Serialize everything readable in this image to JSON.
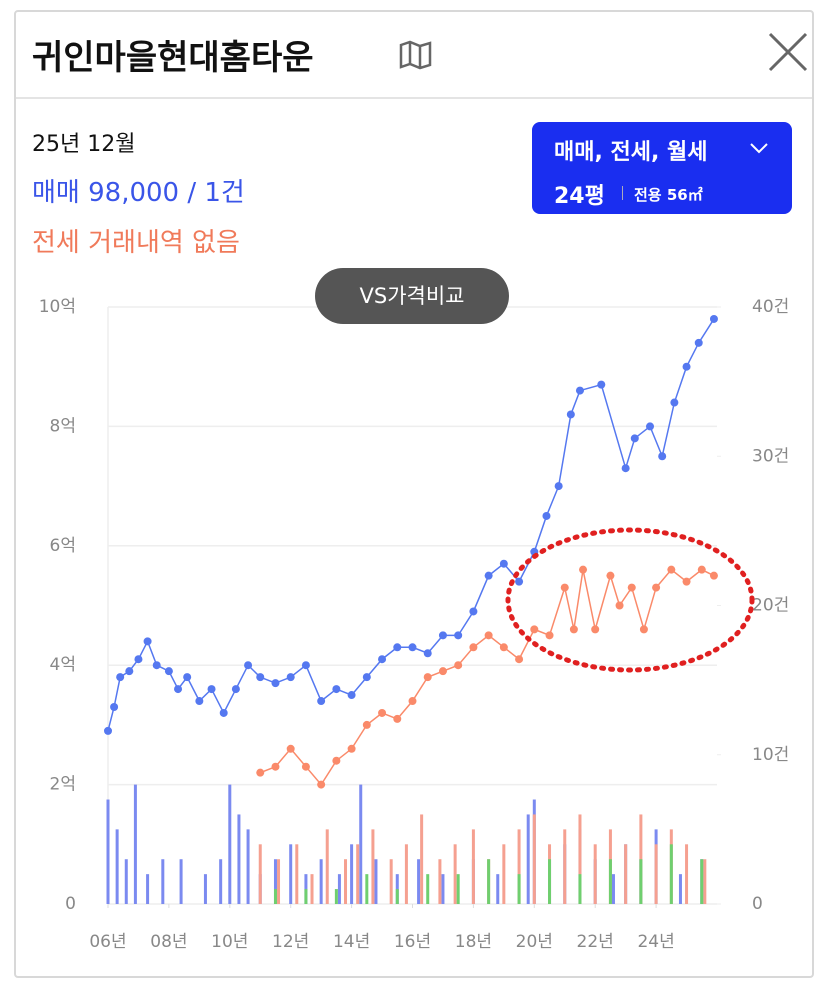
{
  "header": {
    "title": "귀인마을현대홈타운",
    "date": "25년 12월",
    "sale_summary": "매매 98,000 / 1건",
    "lease_summary": "전세 거래내역 없음",
    "filter_button": "매매, 전세, 월세",
    "size": "24평",
    "area": "전용 56㎡",
    "compare_button": "VS가격비교"
  },
  "chart_data": {
    "type": "line",
    "xlim": [
      2006,
      2026
    ],
    "xticks": [
      {
        "value": 2006,
        "label": "06년"
      },
      {
        "value": 2008,
        "label": "08년"
      },
      {
        "value": 2010,
        "label": "10년"
      },
      {
        "value": 2012,
        "label": "12년"
      },
      {
        "value": 2014,
        "label": "14년"
      },
      {
        "value": 2016,
        "label": "16년"
      },
      {
        "value": 2018,
        "label": "18년"
      },
      {
        "value": 2020,
        "label": "20년"
      },
      {
        "value": 2022,
        "label": "22년"
      },
      {
        "value": 2024,
        "label": "24년"
      }
    ],
    "ylim": [
      0,
      10
    ],
    "yticks": [
      0,
      {
        "value": 2,
        "label": "2억"
      },
      {
        "value": 4,
        "label": "4억"
      },
      {
        "value": 6,
        "label": "6억"
      },
      {
        "value": 8,
        "label": "8억"
      },
      {
        "value": 10,
        "label": "10억"
      }
    ],
    "y2lim": [
      0,
      40
    ],
    "y2ticks": [
      0,
      {
        "value": 10,
        "label": "10건"
      },
      {
        "value": 20,
        "label": "20건"
      },
      {
        "value": 30,
        "label": "30건"
      },
      {
        "value": 40,
        "label": "40건"
      }
    ],
    "grid": true,
    "series": [
      {
        "type": "bar",
        "axis": "y2",
        "color": "#7b8af0",
        "x": [
          2006.0,
          2006.3,
          2006.6,
          2006.9,
          2007.3,
          2007.8,
          2008.4,
          2009.2,
          2009.7,
          2010.0,
          2010.3,
          2010.6,
          2011.0,
          2011.5,
          2012.0,
          2012.5,
          2013.0,
          2013.6,
          2014.0,
          2014.3,
          2014.8,
          2015.5,
          2016.2,
          2017.0,
          2018.0,
          2018.8,
          2019.8,
          2020.0,
          2020.5,
          2021.0,
          2021.5,
          2022.0,
          2022.6,
          2023.0,
          2023.5,
          2024.0,
          2024.8,
          2025.5
        ],
        "values": [
          7,
          5,
          3,
          8,
          2,
          3,
          3,
          2,
          3,
          8,
          6,
          5,
          2,
          3,
          4,
          2,
          3,
          2,
          4,
          8,
          3,
          2,
          3,
          2,
          3,
          2,
          6,
          7,
          3,
          4,
          5,
          3,
          2,
          4,
          3,
          5,
          2,
          3
        ]
      },
      {
        "type": "bar",
        "axis": "y2",
        "color": "#f5a090",
        "x": [
          2011.0,
          2011.6,
          2012.2,
          2012.7,
          2013.2,
          2013.8,
          2014.2,
          2014.7,
          2015.3,
          2015.8,
          2016.3,
          2016.9,
          2017.4,
          2018.0,
          2018.5,
          2019.0,
          2019.5,
          2020.0,
          2020.5,
          2021.0,
          2021.5,
          2022.0,
          2022.5,
          2023.0,
          2023.5,
          2024.0,
          2024.5,
          2025.0,
          2025.6
        ],
        "values": [
          4,
          3,
          4,
          2,
          5,
          3,
          4,
          5,
          3,
          4,
          6,
          3,
          4,
          5,
          3,
          4,
          5,
          6,
          4,
          5,
          6,
          4,
          5,
          4,
          6,
          4,
          5,
          4,
          3
        ]
      },
      {
        "type": "bar",
        "axis": "y2",
        "color": "#6fcf6f",
        "x": [
          2011.5,
          2012.5,
          2013.5,
          2014.5,
          2015.5,
          2016.5,
          2017.5,
          2018.5,
          2019.5,
          2020.5,
          2021.5,
          2022.5,
          2023.5,
          2024.5,
          2025.5
        ],
        "values": [
          1,
          1,
          1,
          2,
          1,
          2,
          2,
          3,
          2,
          3,
          2,
          3,
          3,
          4,
          3
        ]
      },
      {
        "type": "line",
        "color": "#fa8a6a",
        "x": [
          2011.0,
          2011.5,
          2012.0,
          2012.5,
          2013.0,
          2013.5,
          2014.0,
          2014.5,
          2015.0,
          2015.5,
          2016.0,
          2016.5,
          2017.0,
          2017.5,
          2018.0,
          2018.5,
          2019.0,
          2019.5,
          2020.0,
          2020.5,
          2021.0,
          2021.3,
          2021.6,
          2022.0,
          2022.5,
          2022.8,
          2023.2,
          2023.6,
          2024.0,
          2024.5,
          2025.0,
          2025.5,
          2025.9
        ],
        "values": [
          2.2,
          2.3,
          2.6,
          2.3,
          2.0,
          2.4,
          2.6,
          3.0,
          3.2,
          3.1,
          3.4,
          3.8,
          3.9,
          4.0,
          4.3,
          4.5,
          4.3,
          4.1,
          4.6,
          4.5,
          5.3,
          4.6,
          5.6,
          4.6,
          5.5,
          5.0,
          5.3,
          4.6,
          5.3,
          5.6,
          5.4,
          5.6,
          5.5
        ]
      },
      {
        "type": "line",
        "color": "#5578f0",
        "x": [
          2006.0,
          2006.2,
          2006.4,
          2006.7,
          2007.0,
          2007.3,
          2007.6,
          2008.0,
          2008.3,
          2008.6,
          2009.0,
          2009.4,
          2009.8,
          2010.2,
          2010.6,
          2011.0,
          2011.5,
          2012.0,
          2012.5,
          2013.0,
          2013.5,
          2014.0,
          2014.5,
          2015.0,
          2015.5,
          2016.0,
          2016.5,
          2017.0,
          2017.5,
          2018.0,
          2018.5,
          2019.0,
          2019.5,
          2020.0,
          2020.4,
          2020.8,
          2021.2,
          2021.5,
          2022.2,
          2023.0,
          2023.3,
          2023.8,
          2024.2,
          2024.6,
          2025.0,
          2025.4,
          2025.9
        ],
        "values": [
          2.9,
          3.3,
          3.8,
          3.9,
          4.1,
          4.4,
          4.0,
          3.9,
          3.6,
          3.8,
          3.4,
          3.6,
          3.2,
          3.6,
          4.0,
          3.8,
          3.7,
          3.8,
          4.0,
          3.4,
          3.6,
          3.5,
          3.8,
          4.1,
          4.3,
          4.3,
          4.2,
          4.5,
          4.5,
          4.9,
          5.5,
          5.7,
          5.4,
          5.9,
          6.5,
          7.0,
          8.2,
          8.6,
          8.7,
          7.3,
          7.8,
          8.0,
          7.5,
          8.4,
          9.0,
          9.4,
          9.8
        ]
      }
    ]
  }
}
